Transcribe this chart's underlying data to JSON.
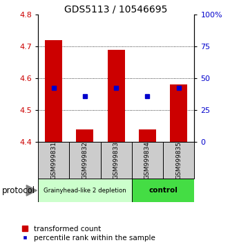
{
  "title": "GDS5113 / 10546695",
  "samples": [
    "GSM999831",
    "GSM999832",
    "GSM999833",
    "GSM999834",
    "GSM999835"
  ],
  "bar_bottom": 4.4,
  "bar_tops": [
    4.72,
    4.44,
    4.69,
    4.44,
    4.58
  ],
  "blue_squares": [
    4.57,
    4.545,
    4.57,
    4.545,
    4.57
  ],
  "ylim_left": [
    4.4,
    4.8
  ],
  "ylim_right": [
    0,
    100
  ],
  "yticks_left": [
    4.4,
    4.5,
    4.6,
    4.7,
    4.8
  ],
  "yticks_right": [
    0,
    25,
    50,
    75,
    100
  ],
  "ytick_labels_right": [
    "0",
    "25",
    "50",
    "75",
    "100%"
  ],
  "bar_color": "#cc0000",
  "square_color": "#0000cc",
  "group1_label": "Grainyhead-like 2 depletion",
  "group2_label": "control",
  "group1_color": "#ccffcc",
  "group2_color": "#44dd44",
  "protocol_label": "protocol",
  "legend_bar_label": "transformed count",
  "legend_sq_label": "percentile rank within the sample",
  "bar_width": 0.55,
  "tick_area_color": "#cccccc",
  "title_fontsize": 10
}
